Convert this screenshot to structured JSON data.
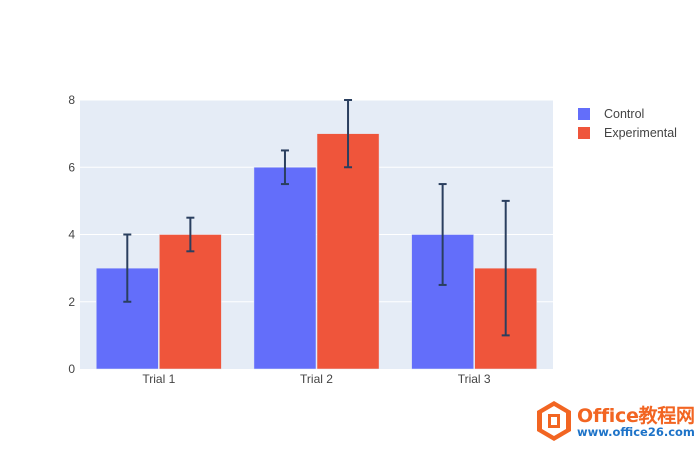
{
  "chart_data": {
    "type": "bar",
    "barmode": "group",
    "categories": [
      "Trial 1",
      "Trial 2",
      "Trial 3"
    ],
    "series": [
      {
        "name": "Control",
        "values": [
          3,
          6,
          4
        ],
        "error_y": [
          1,
          0.5,
          1.5
        ],
        "color": "#636efa"
      },
      {
        "name": "Experimental",
        "values": [
          4,
          7,
          3
        ],
        "error_y": [
          0.5,
          1,
          2
        ],
        "color": "#ef553b"
      }
    ],
    "ylim": [
      0,
      8
    ],
    "yticks": [
      0,
      2,
      4,
      6,
      8
    ],
    "grid": true,
    "legend_position": "top-right",
    "plot_background": "#e5ecf6",
    "error_bar_color": "#2a3f5f"
  },
  "watermark": {
    "title": "Office教程网",
    "url": "www.office26.com"
  }
}
